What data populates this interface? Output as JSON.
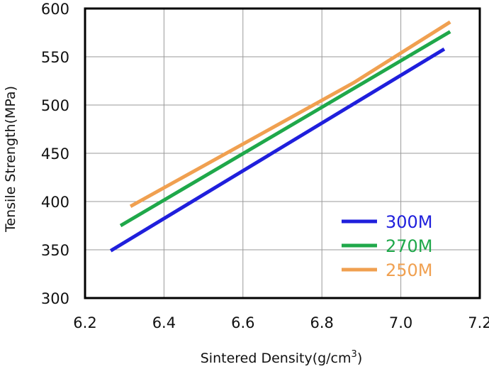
{
  "chart_data": {
    "type": "line",
    "title": "",
    "xlabel": "Sintered Density(g/cm",
    "xlabel_superscript": "3",
    "xlabel_suffix": ")",
    "ylabel": "Tensile Strength(MPa)",
    "xlim": [
      6.2,
      7.2
    ],
    "ylim": [
      300,
      600
    ],
    "x_ticks": [
      "6.2",
      "6.4",
      "6.6",
      "6.8",
      "7.0",
      "7.2"
    ],
    "y_ticks": [
      "300",
      "350",
      "400",
      "450",
      "500",
      "550",
      "600"
    ],
    "grid": true,
    "legend_position": "bottom-right",
    "series": [
      {
        "name": "300M",
        "color": "#1f1fdc",
        "x": [
          6.265,
          7.11
        ],
        "y": [
          349,
          558
        ]
      },
      {
        "name": "270M",
        "color": "#1fa84a",
        "x": [
          6.29,
          6.88,
          7.125
        ],
        "y": [
          375,
          517,
          576
        ]
      },
      {
        "name": "250M",
        "color": "#f0a050",
        "x": [
          6.315,
          6.88,
          7.125
        ],
        "y": [
          395,
          523,
          586
        ]
      }
    ]
  }
}
